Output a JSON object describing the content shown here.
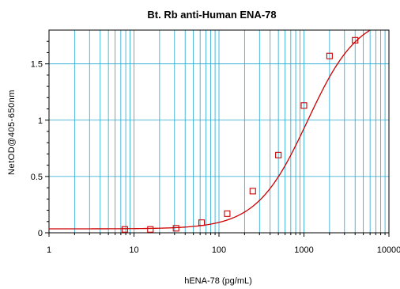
{
  "chart_data": {
    "type": "scatter",
    "title": "Bt. Rb anti-Human ENA-78",
    "xlabel": "hENA-78 (pg/mL)",
    "ylabel": "NetOD@405-650nm",
    "x_scale": "log",
    "xlim": [
      1,
      10000
    ],
    "ylim": [
      0,
      1.8
    ],
    "x_ticks": [
      1,
      10,
      100,
      1000,
      10000
    ],
    "x_tick_labels": [
      "1",
      "10",
      "100",
      "1000",
      "10000"
    ],
    "y_ticks": [
      0,
      0.5,
      1,
      1.5
    ],
    "y_tick_labels": [
      "0",
      "0.5",
      "1",
      "1.5"
    ],
    "grid": true,
    "series": [
      {
        "marker": "square",
        "color": "#cc0000",
        "points": [
          {
            "x": 7.8,
            "y": 0.03
          },
          {
            "x": 15.6,
            "y": 0.03
          },
          {
            "x": 31.25,
            "y": 0.04
          },
          {
            "x": 62.5,
            "y": 0.09
          },
          {
            "x": 125,
            "y": 0.17
          },
          {
            "x": 250,
            "y": 0.37
          },
          {
            "x": 500,
            "y": 0.69
          },
          {
            "x": 1000,
            "y": 1.13
          },
          {
            "x": 2000,
            "y": 1.57
          },
          {
            "x": 4000,
            "y": 1.71
          }
        ]
      }
    ],
    "fit_curve": {
      "color": "#cc0000",
      "model": "4PL",
      "bottom": 0.035,
      "top": 1.95,
      "ec50": 1100,
      "hill": 1.45
    }
  },
  "colors": {
    "grid": "#22a6d0",
    "curve": "#cc0000",
    "axis": "#000000"
  }
}
